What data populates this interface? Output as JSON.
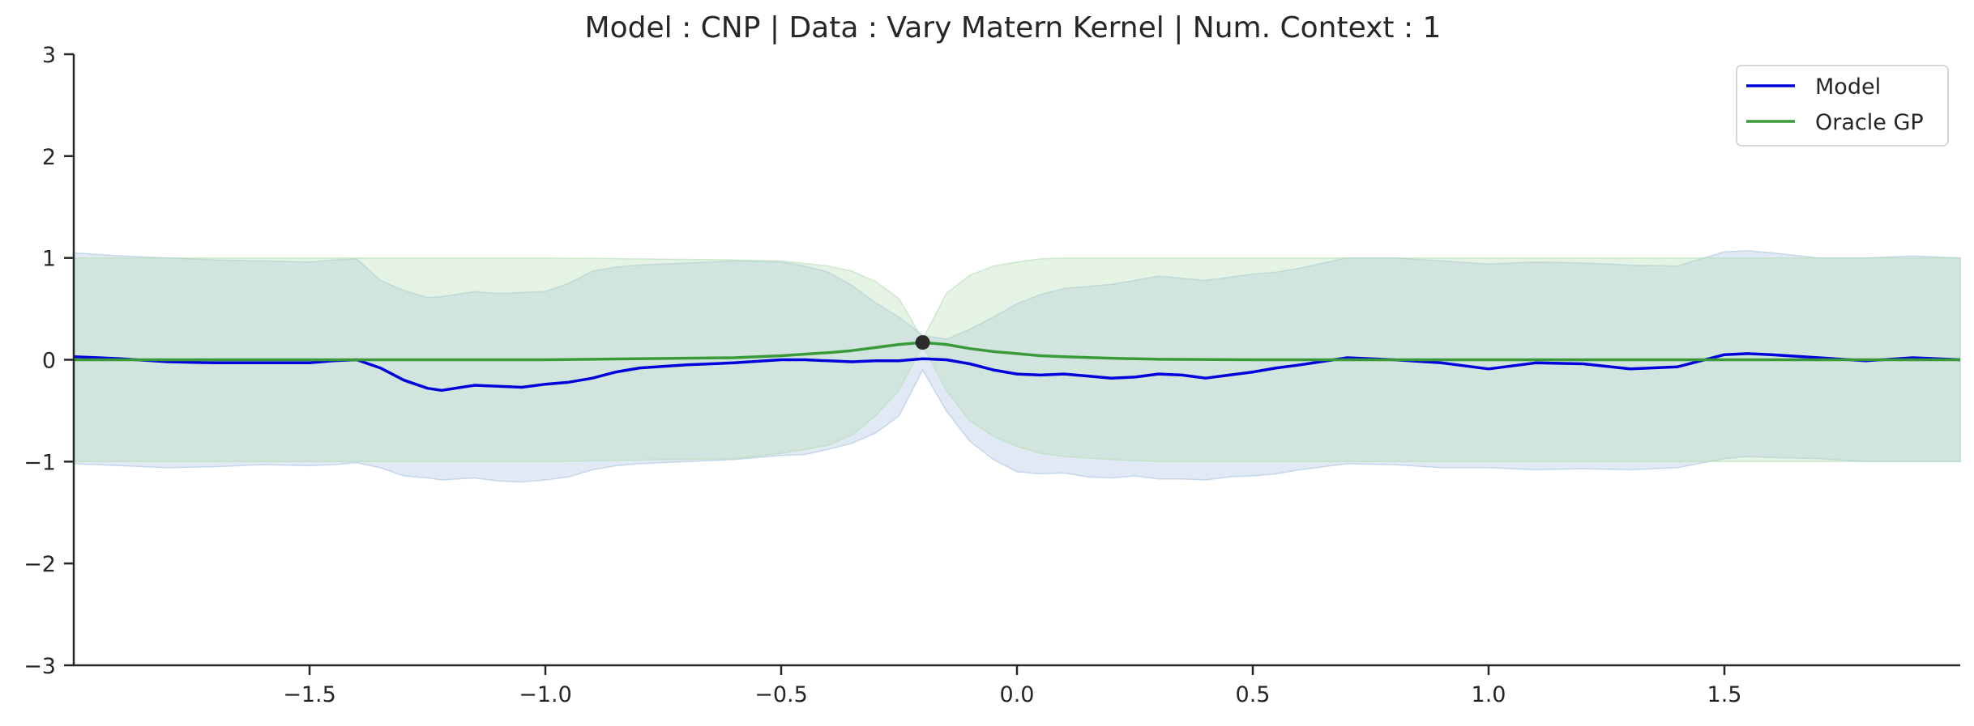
{
  "chart_data": {
    "type": "line",
    "title": "Model : CNP | Data : Vary Matern Kernel | Num. Context : 1",
    "xlabel": "",
    "ylabel": "",
    "xlim": [
      -2.0,
      2.0
    ],
    "ylim": [
      -3,
      3
    ],
    "x_ticks": [
      -1.5,
      -1.0,
      -0.5,
      0.0,
      0.5,
      1.0,
      1.5
    ],
    "x_tick_labels": [
      "−1.5",
      "−1.0",
      "−0.5",
      "0.0",
      "0.5",
      "1.0",
      "1.5"
    ],
    "y_ticks": [
      -3,
      -2,
      -1,
      0,
      1,
      2,
      3
    ],
    "y_tick_labels": [
      "−3",
      "−2",
      "−1",
      "0",
      "1",
      "2",
      "3"
    ],
    "grid": false,
    "legend_position": "top-right",
    "context_points": [
      {
        "x": -0.2,
        "y": 0.17
      }
    ],
    "series": [
      {
        "name": "Model",
        "color": "#0000dd",
        "band_color": "#a8c4e0",
        "x": [
          -2.0,
          -1.9,
          -1.8,
          -1.7,
          -1.6,
          -1.5,
          -1.45,
          -1.4,
          -1.35,
          -1.3,
          -1.25,
          -1.22,
          -1.15,
          -1.1,
          -1.05,
          -1.0,
          -0.95,
          -0.9,
          -0.85,
          -0.8,
          -0.7,
          -0.6,
          -0.5,
          -0.45,
          -0.4,
          -0.35,
          -0.3,
          -0.25,
          -0.2,
          -0.15,
          -0.1,
          -0.05,
          0.0,
          0.05,
          0.1,
          0.15,
          0.2,
          0.25,
          0.3,
          0.35,
          0.4,
          0.45,
          0.5,
          0.55,
          0.6,
          0.7,
          0.8,
          0.9,
          1.0,
          1.1,
          1.2,
          1.3,
          1.4,
          1.5,
          1.55,
          1.6,
          1.7,
          1.8,
          1.9,
          2.0
        ],
        "mean": [
          0.03,
          0.01,
          -0.02,
          -0.03,
          -0.03,
          -0.03,
          -0.01,
          0.0,
          -0.08,
          -0.2,
          -0.28,
          -0.3,
          -0.25,
          -0.26,
          -0.27,
          -0.24,
          -0.22,
          -0.18,
          -0.12,
          -0.08,
          -0.05,
          -0.03,
          0.0,
          0.0,
          -0.01,
          -0.02,
          -0.01,
          -0.01,
          0.01,
          0.0,
          -0.04,
          -0.1,
          -0.14,
          -0.15,
          -0.14,
          -0.16,
          -0.18,
          -0.17,
          -0.14,
          -0.15,
          -0.18,
          -0.15,
          -0.12,
          -0.08,
          -0.05,
          0.02,
          0.0,
          -0.03,
          -0.09,
          -0.03,
          -0.04,
          -0.09,
          -0.07,
          0.05,
          0.06,
          0.05,
          0.02,
          -0.01,
          0.02,
          0.0
        ],
        "upper": [
          1.05,
          1.02,
          1.0,
          0.98,
          0.97,
          0.96,
          0.98,
          0.99,
          0.78,
          0.68,
          0.61,
          0.62,
          0.67,
          0.65,
          0.66,
          0.67,
          0.75,
          0.87,
          0.91,
          0.93,
          0.95,
          0.97,
          0.96,
          0.92,
          0.86,
          0.73,
          0.56,
          0.42,
          0.24,
          0.2,
          0.3,
          0.42,
          0.55,
          0.64,
          0.7,
          0.72,
          0.74,
          0.78,
          0.82,
          0.8,
          0.78,
          0.81,
          0.84,
          0.86,
          0.9,
          1.0,
          1.0,
          0.97,
          0.94,
          0.96,
          0.95,
          0.93,
          0.92,
          1.06,
          1.07,
          1.05,
          1.0,
          1.0,
          1.02,
          1.0
        ],
        "lower": [
          -1.02,
          -1.04,
          -1.06,
          -1.05,
          -1.03,
          -1.04,
          -1.03,
          -1.01,
          -1.06,
          -1.14,
          -1.16,
          -1.18,
          -1.16,
          -1.19,
          -1.2,
          -1.18,
          -1.15,
          -1.08,
          -1.04,
          -1.02,
          -1.0,
          -0.98,
          -0.94,
          -0.93,
          -0.88,
          -0.82,
          -0.72,
          -0.55,
          -0.1,
          -0.5,
          -0.8,
          -0.98,
          -1.1,
          -1.12,
          -1.11,
          -1.15,
          -1.16,
          -1.14,
          -1.17,
          -1.17,
          -1.18,
          -1.15,
          -1.14,
          -1.12,
          -1.08,
          -1.02,
          -1.03,
          -1.06,
          -1.06,
          -1.08,
          -1.07,
          -1.08,
          -1.06,
          -0.97,
          -0.95,
          -0.96,
          -0.97,
          -1.0,
          -1.0,
          -1.0
        ]
      },
      {
        "name": "Oracle GP",
        "color": "#3a9a3a",
        "band_color": "#b5dcb5",
        "x": [
          -2.0,
          -1.0,
          -0.6,
          -0.5,
          -0.4,
          -0.35,
          -0.3,
          -0.25,
          -0.2,
          -0.15,
          -0.1,
          -0.05,
          0.0,
          0.05,
          0.1,
          0.2,
          0.3,
          0.5,
          1.0,
          2.0
        ],
        "mean": [
          0.0,
          0.0,
          0.02,
          0.04,
          0.07,
          0.09,
          0.12,
          0.15,
          0.17,
          0.15,
          0.11,
          0.08,
          0.06,
          0.04,
          0.03,
          0.015,
          0.005,
          0.0,
          0.0,
          0.0
        ],
        "upper": [
          1.0,
          1.0,
          0.98,
          0.97,
          0.92,
          0.87,
          0.77,
          0.6,
          0.2,
          0.65,
          0.83,
          0.92,
          0.96,
          0.99,
          1.0,
          1.0,
          1.0,
          1.0,
          1.0,
          1.0
        ],
        "lower": [
          -1.0,
          -1.0,
          -0.97,
          -0.92,
          -0.84,
          -0.74,
          -0.55,
          -0.3,
          0.14,
          -0.3,
          -0.6,
          -0.75,
          -0.85,
          -0.92,
          -0.95,
          -0.98,
          -1.0,
          -1.0,
          -1.0,
          -1.0
        ]
      }
    ]
  }
}
